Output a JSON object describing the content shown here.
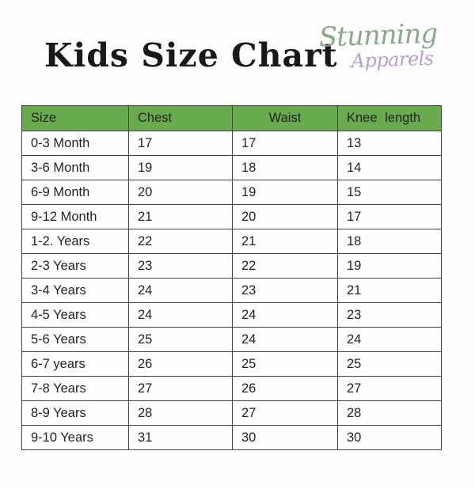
{
  "title": "Kids Size Chart",
  "logo": {
    "word1": "Stunning",
    "word2": "Apparels",
    "word1_color": "#8aa98b",
    "word2_color": "#b59fd0"
  },
  "chart_data": {
    "type": "table",
    "title": "Kids Size Chart",
    "columns": [
      "Size",
      "Chest",
      "Waist",
      "Knee length"
    ],
    "rows": [
      [
        "0-3 Month",
        "17",
        "17",
        "13"
      ],
      [
        "3-6 Month",
        "19",
        "18",
        "14"
      ],
      [
        "6-9 Month",
        "20",
        "19",
        "15"
      ],
      [
        "9-12 Month",
        "21",
        "20",
        "17"
      ],
      [
        "1-2. Years",
        "22",
        "21",
        "18"
      ],
      [
        "2-3 Years",
        "23",
        "22",
        "19"
      ],
      [
        "3-4 Years",
        "24",
        "23",
        "21"
      ],
      [
        "4-5 Years",
        "24",
        "24",
        "23"
      ],
      [
        "5-6 Years",
        "25",
        "24",
        "24"
      ],
      [
        "6-7 years",
        "26",
        "25",
        "25"
      ],
      [
        "7-8 Years",
        "27",
        "26",
        "27"
      ],
      [
        "8-9 Years",
        "28",
        "27",
        "28"
      ],
      [
        "9-10 Years",
        "31",
        "30",
        "30"
      ]
    ],
    "header_bg": "#6aaa4e",
    "border_color": "#414141",
    "layout": {
      "legend_position": "none",
      "grid": "full table borders",
      "header_alignment": [
        "left",
        "left",
        "center",
        "left"
      ],
      "body_alignment": "left"
    }
  }
}
